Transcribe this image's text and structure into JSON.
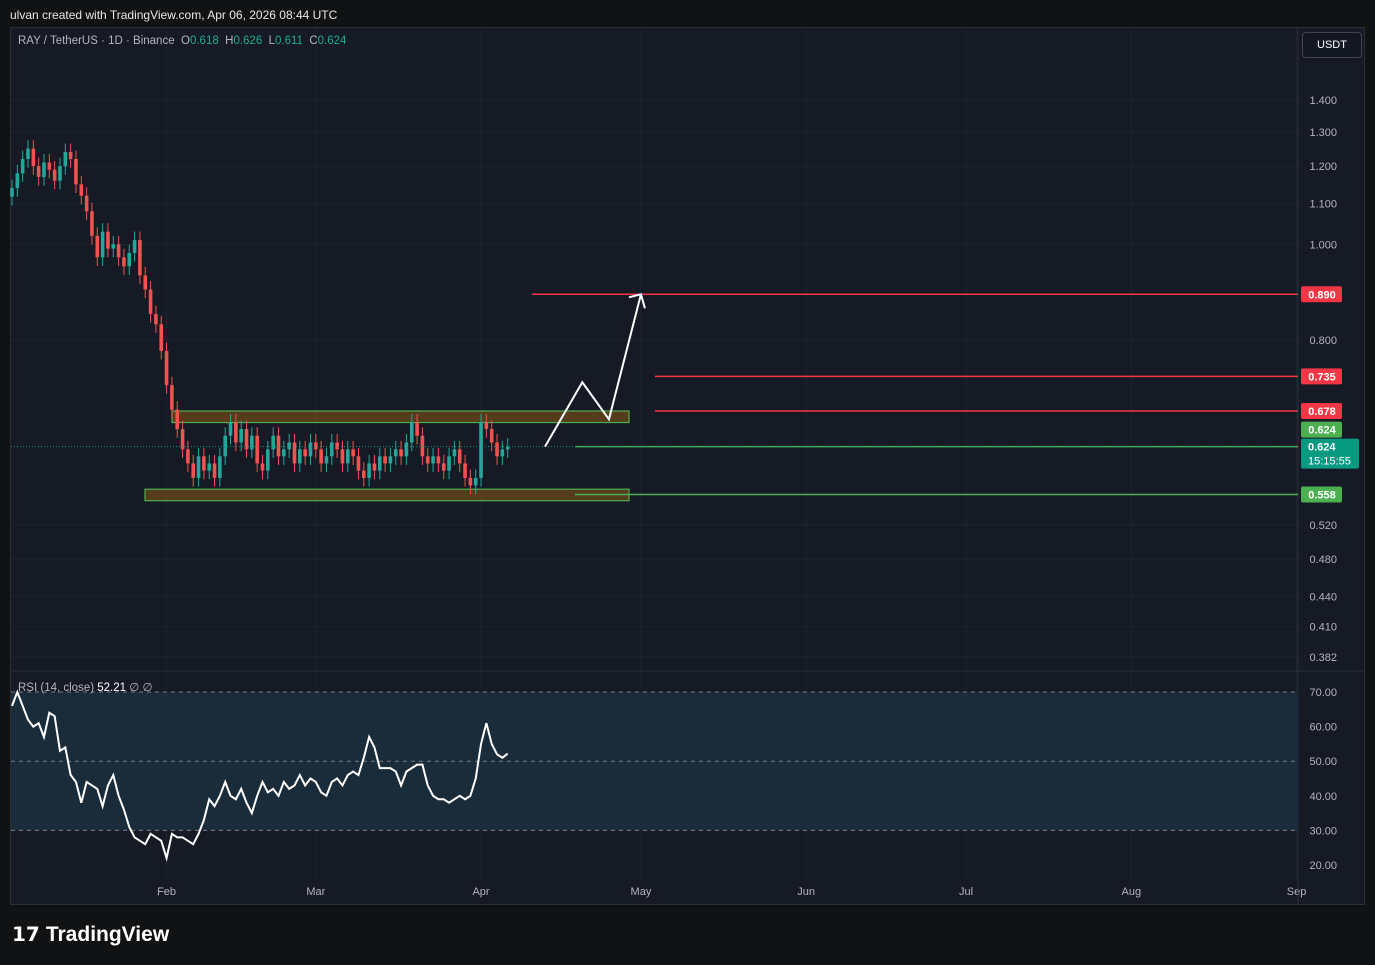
{
  "header": "ulvan created with TradingView.com, Apr 06, 2026 08:44 UTC",
  "legend": {
    "symbol": "RAY / TetherUS · 1D · Binance",
    "o_label": "O",
    "o": "0.618",
    "h_label": "H",
    "h": "0.626",
    "l_label": "L",
    "l": "0.611",
    "c_label": "C",
    "c": "0.624"
  },
  "currency": "USDT",
  "rsi_legend": {
    "label": "RSI (14, close)",
    "value": "52.21",
    "extra": "∅ ∅"
  },
  "brand": "TradingView",
  "chart_data": {
    "type": "candlestick",
    "scale": "log",
    "start_date": "Jan 03",
    "closes": [
      1.14,
      1.18,
      1.22,
      1.25,
      1.2,
      1.17,
      1.21,
      1.19,
      1.16,
      1.2,
      1.24,
      1.22,
      1.15,
      1.12,
      1.08,
      1.02,
      0.97,
      1.03,
      0.99,
      1.0,
      0.97,
      0.95,
      0.98,
      1.01,
      0.93,
      0.9,
      0.85,
      0.83,
      0.78,
      0.72,
      0.68,
      0.65,
      0.62,
      0.6,
      0.58,
      0.61,
      0.59,
      0.6,
      0.58,
      0.61,
      0.64,
      0.66,
      0.63,
      0.65,
      0.62,
      0.64,
      0.6,
      0.59,
      0.62,
      0.64,
      0.61,
      0.62,
      0.63,
      0.6,
      0.62,
      0.61,
      0.63,
      0.62,
      0.6,
      0.61,
      0.63,
      0.62,
      0.6,
      0.62,
      0.61,
      0.59,
      0.58,
      0.6,
      0.59,
      0.61,
      0.6,
      0.61,
      0.62,
      0.61,
      0.63,
      0.66,
      0.64,
      0.61,
      0.6,
      0.61,
      0.6,
      0.59,
      0.61,
      0.62,
      0.6,
      0.58,
      0.57,
      0.58,
      0.66,
      0.65,
      0.63,
      0.61,
      0.62,
      0.624
    ],
    "y_ticks": [
      "1.400",
      "1.300",
      "1.200",
      "1.100",
      "1.000",
      "0.800",
      "0.520",
      "0.480",
      "0.440",
      "0.410",
      "0.382"
    ],
    "y_tick_values": [
      1.4,
      1.3,
      1.2,
      1.1,
      1.0,
      0.8,
      0.52,
      0.48,
      0.44,
      0.41,
      0.382
    ],
    "x_ticks": [
      "Feb",
      "Mar",
      "Apr",
      "May",
      "Jun",
      "Jul",
      "Aug",
      "Sep"
    ],
    "x_tick_days": [
      29,
      57,
      88,
      118,
      149,
      179,
      210,
      241
    ],
    "levels": [
      {
        "value": 0.89,
        "label": "0.890",
        "color": "#f23645"
      },
      {
        "value": 0.735,
        "label": "0.735",
        "color": "#f23645"
      },
      {
        "value": 0.678,
        "label": "0.678",
        "color": "#f23645"
      },
      {
        "value": 0.624,
        "label": "0.624",
        "color": "#4caf50"
      },
      {
        "value": 0.558,
        "label": "0.558",
        "color": "#4caf50"
      }
    ],
    "last_price": {
      "value": 0.624,
      "label": "0.624",
      "countdown": "15:15:55",
      "color": "#089981"
    },
    "zones": [
      {
        "top": 0.678,
        "bottom": 0.66
      },
      {
        "top": 0.565,
        "bottom": 0.55
      }
    ],
    "projection": [
      [
        100,
        0.624
      ],
      [
        107,
        0.725
      ],
      [
        112,
        0.665
      ],
      [
        118,
        0.89
      ]
    ],
    "rsi": {
      "values": [
        66,
        70,
        66,
        62,
        60,
        61,
        57,
        64,
        63,
        53,
        54,
        46,
        44,
        38,
        44,
        43,
        42,
        37,
        43,
        46,
        40,
        36,
        31,
        28,
        27,
        26,
        29,
        28,
        27,
        22,
        29,
        28,
        28,
        27,
        26,
        29,
        33,
        39,
        37,
        40,
        44,
        40,
        39,
        42,
        38,
        35,
        40,
        44,
        41,
        42,
        40,
        44,
        42,
        43,
        46,
        43,
        45,
        44,
        41,
        40,
        44,
        45,
        43,
        46,
        47,
        46,
        51,
        57,
        54,
        48,
        48,
        48,
        47,
        43,
        47,
        48,
        49,
        49,
        43,
        40,
        39,
        39,
        38,
        39,
        40,
        39,
        40,
        45,
        55,
        61,
        55,
        52,
        51,
        52.21
      ],
      "ticks": [
        "70.00",
        "60.00",
        "50.00",
        "40.00",
        "30.00",
        "20.00"
      ],
      "tick_values": [
        70,
        60,
        50,
        40,
        30,
        20
      ],
      "bands": [
        70,
        50,
        30
      ]
    }
  }
}
